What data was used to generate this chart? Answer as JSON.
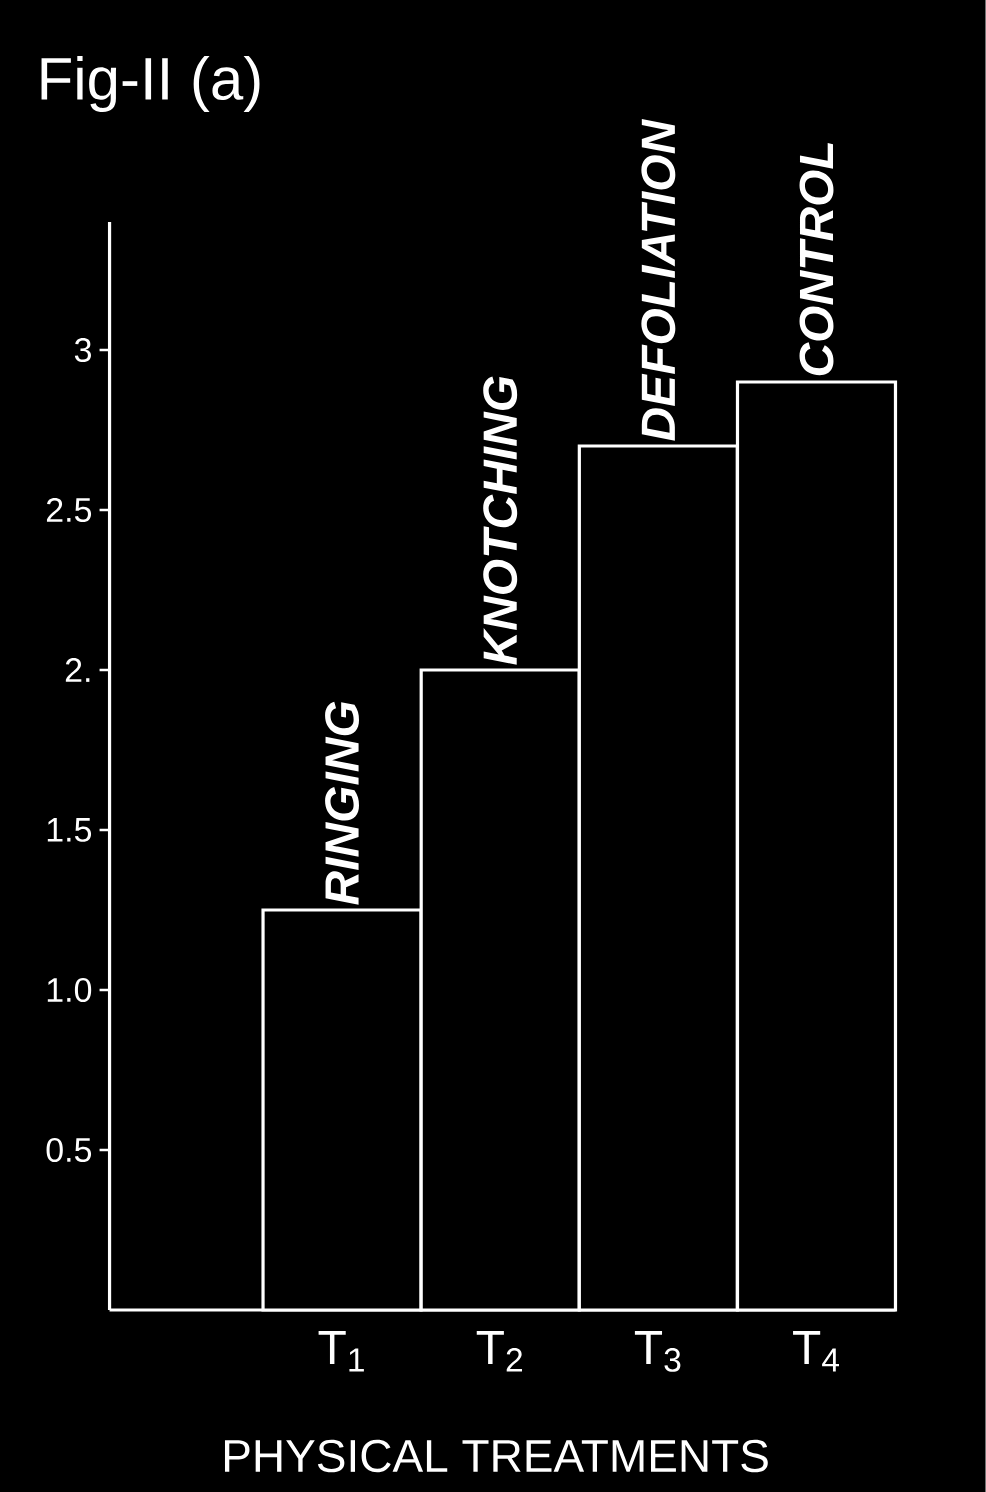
{
  "chart_data": {
    "type": "bar",
    "title": "Fig-II (a)",
    "xlabel": "PHYSICAL TREATMENTS",
    "categories": [
      "T$_{1}$",
      "T$_{2}$",
      "T$_{3}$",
      "T$_{4}$"
    ],
    "values": [
      1.25,
      2.0,
      2.7,
      2.9
    ],
    "colors": [
      "#ffffff",
      "#ffffff",
      "#ffffff",
      "#ffffff"
    ],
    "ylim": [
      0,
      3.4
    ],
    "yticks": [
      0.5,
      {
        "value": 1,
        "label": "1.0"
      },
      1.5,
      {
        "value": 2,
        "label": "2."
      },
      2.5,
      3
    ],
    "annotations": [
      {
        "text": "RINGING",
        "x": "T$_{1}$",
        "y": 1.25
      },
      {
        "text": "KNOTCHING",
        "x": "T$_{2}$",
        "y": 2.0
      },
      {
        "text": "DEFOLIATION",
        "x": "T$_{3}$",
        "y": 2.7
      },
      {
        "text": "CONTROL",
        "x": "T$_{4}$",
        "y": 2.9
      }
    ],
    "grid": false
  }
}
